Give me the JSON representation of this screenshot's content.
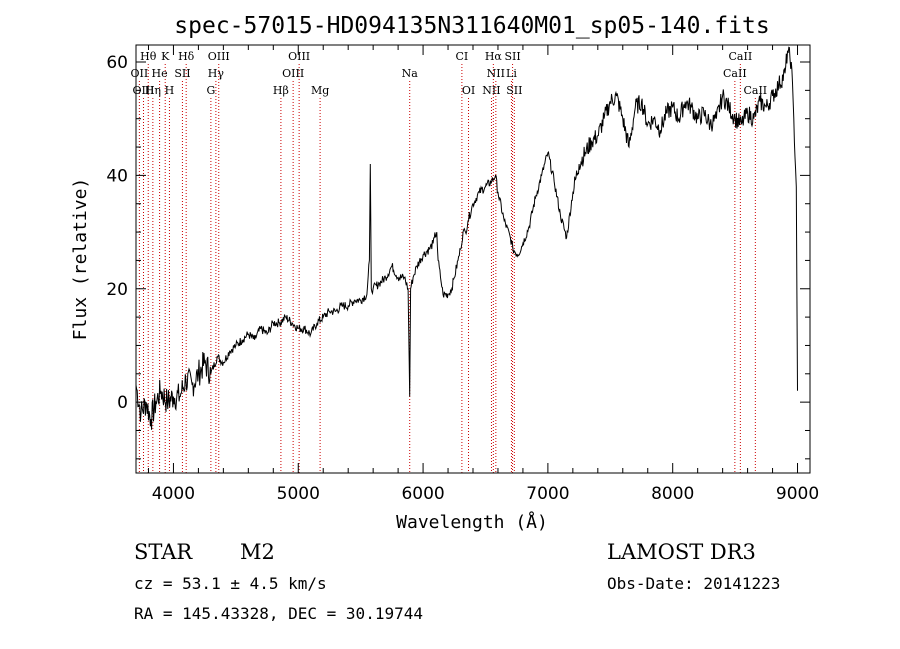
{
  "chart_data": {
    "type": "line",
    "title": "spec-57015-HD094135N311640M01_sp05-140.fits",
    "xlabel": "Wavelength (Å)",
    "ylabel": "Flux (relative)",
    "xlim": [
      3700,
      9100
    ],
    "ylim": [
      -12.5,
      63
    ],
    "xticks": [
      4000,
      5000,
      6000,
      7000,
      8000,
      9000
    ],
    "yticks": [
      0,
      20,
      40,
      60
    ],
    "grid": false,
    "series": [
      {
        "name": "flux",
        "x": [
          3700,
          3740,
          3780,
          3820,
          3860,
          3900,
          3950,
          4000,
          4050,
          4100,
          4150,
          4200,
          4250,
          4300,
          4350,
          4400,
          4450,
          4500,
          4550,
          4600,
          4650,
          4700,
          4750,
          4800,
          4850,
          4900,
          4950,
          5000,
          5050,
          5100,
          5150,
          5200,
          5250,
          5300,
          5350,
          5400,
          5450,
          5500,
          5550,
          5570,
          5577,
          5585,
          5600,
          5650,
          5700,
          5750,
          5800,
          5850,
          5880,
          5893,
          5900,
          5920,
          5950,
          6000,
          6050,
          6080,
          6090,
          6110,
          6120,
          6140,
          6160,
          6200,
          6230,
          6250,
          6280,
          6300,
          6320,
          6340,
          6360,
          6400,
          6450,
          6500,
          6550,
          6580,
          6600,
          6650,
          6700,
          6720,
          6760,
          6800,
          6850,
          6900,
          6950,
          7000,
          7050,
          7100,
          7150,
          7200,
          7250,
          7300,
          7350,
          7400,
          7450,
          7500,
          7550,
          7600,
          7650,
          7700,
          7750,
          7800,
          7850,
          7900,
          7950,
          8000,
          8050,
          8100,
          8150,
          8200,
          8250,
          8300,
          8350,
          8400,
          8450,
          8500,
          8550,
          8600,
          8650,
          8700,
          8750,
          8800,
          8850,
          8900,
          8920,
          8950,
          8970,
          8990,
          9000
        ],
        "y": [
          3,
          -2,
          0,
          -3,
          0,
          2,
          0,
          1,
          1,
          4,
          3,
          5,
          7,
          5,
          8,
          7,
          9,
          10,
          11,
          12,
          11,
          13,
          12,
          14,
          14,
          15,
          14,
          13,
          13,
          12,
          14,
          15,
          16,
          16,
          17,
          17,
          18,
          18,
          19,
          25,
          42,
          20,
          20,
          21,
          22,
          24,
          22,
          22,
          20,
          1,
          20,
          22,
          24,
          26,
          27,
          28,
          29,
          30,
          25,
          22,
          19,
          19,
          20,
          22,
          25,
          27,
          30,
          30,
          32,
          35,
          37,
          38,
          39,
          40,
          37,
          32,
          29,
          27,
          26,
          28,
          31,
          36,
          40,
          44,
          39,
          33,
          29,
          37,
          42,
          44,
          46,
          47,
          50,
          53,
          54,
          50,
          45,
          52,
          53,
          49,
          50,
          48,
          51,
          52,
          50,
          53,
          52,
          50,
          51,
          49,
          50,
          54,
          52,
          50,
          49,
          51,
          50,
          53,
          52,
          54,
          56,
          58,
          62,
          60,
          50,
          38,
          2
        ]
      }
    ],
    "lines": [
      {
        "label": "Hθ",
        "x": 3798,
        "pos": "top",
        "row": 0
      },
      {
        "label": "K",
        "x": 3934,
        "pos": "top",
        "row": 0
      },
      {
        "label": "Hδ",
        "x": 4102,
        "pos": "top",
        "row": 0
      },
      {
        "label": "OIII",
        "x": 4363,
        "pos": "top",
        "row": 0
      },
      {
        "label": "OIII",
        "x": 5007,
        "pos": "top",
        "row": 0
      },
      {
        "label": "CI",
        "x": 6311,
        "pos": "top",
        "row": 0
      },
      {
        "label": "Hα",
        "x": 6563,
        "pos": "top",
        "row": 0
      },
      {
        "label": "SII",
        "x": 6717,
        "pos": "top",
        "row": 0
      },
      {
        "label": "CaII",
        "x": 8542,
        "pos": "top",
        "row": 0
      },
      {
        "label": "OII",
        "x": 3727,
        "pos": "top",
        "row": 1
      },
      {
        "label": "He",
        "x": 3889,
        "pos": "top",
        "row": 1
      },
      {
        "label": "SII",
        "x": 4072,
        "pos": "top",
        "row": 1
      },
      {
        "label": "Hγ",
        "x": 4340,
        "pos": "top",
        "row": 1
      },
      {
        "label": "OIII",
        "x": 4959,
        "pos": "top",
        "row": 1
      },
      {
        "label": "Na",
        "x": 5893,
        "pos": "top",
        "row": 1
      },
      {
        "label": "NII",
        "x": 6583,
        "pos": "top",
        "row": 1
      },
      {
        "label": "Li",
        "x": 6708,
        "pos": "top",
        "row": 1
      },
      {
        "label": "CaII",
        "x": 8498,
        "pos": "top",
        "row": 1
      },
      {
        "label": "OIII",
        "x": 3760,
        "pos": "top",
        "row": 2
      },
      {
        "label": "Hη",
        "x": 3835,
        "pos": "top",
        "row": 2
      },
      {
        "label": "H",
        "x": 3968,
        "pos": "top",
        "row": 2
      },
      {
        "label": "G",
        "x": 4300,
        "pos": "top",
        "row": 2
      },
      {
        "label": "Hβ",
        "x": 4861,
        "pos": "top",
        "row": 2
      },
      {
        "label": "Mg",
        "x": 5175,
        "pos": "top",
        "row": 2
      },
      {
        "label": "OI",
        "x": 6364,
        "pos": "top",
        "row": 2
      },
      {
        "label": "NII",
        "x": 6548,
        "pos": "top",
        "row": 2
      },
      {
        "label": "SII",
        "x": 6731,
        "pos": "top",
        "row": 2
      },
      {
        "label": "CaII",
        "x": 8662,
        "pos": "top",
        "row": 2
      }
    ]
  },
  "info": {
    "class_label": "STAR",
    "subclass": "M2",
    "survey": "LAMOST DR3",
    "cz": "cz = 53.1 ± 4.5 km/s",
    "obs_date": "Obs-Date: 20141223",
    "coords": "RA = 145.43328, DEC =  30.19744"
  },
  "colors": {
    "line_marker": "#cc0000",
    "axis": "#000000",
    "spectrum": "#000000"
  }
}
